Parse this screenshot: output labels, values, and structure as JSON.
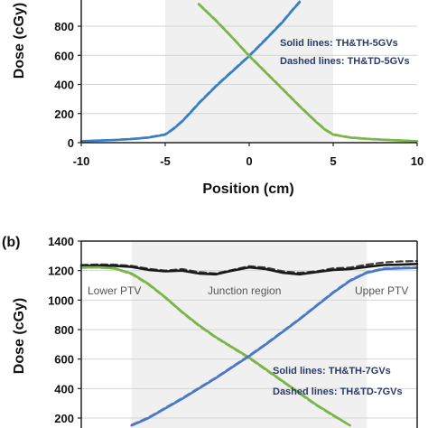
{
  "chart_data": [
    {
      "panel": "",
      "type": "line",
      "xlabel": "Position (cm)",
      "ylabel": "Dose (cGy)",
      "xlim": [
        -10,
        10
      ],
      "ylim": [
        0,
        1000
      ],
      "x_ticks": [
        "-10",
        "-5",
        "0",
        "5",
        "10"
      ],
      "y_ticks": [
        "0",
        "200",
        "400",
        "600",
        "800"
      ],
      "shaded_region": [
        -5,
        5
      ],
      "annotations": [
        "Solid lines: TH&TH-5GVs",
        "Dashed lines: TH&TD-5GVs"
      ],
      "series": [
        {
          "color": "#3a7fc4",
          "style": "solid",
          "x": [
            -10,
            -9,
            -8,
            -7,
            -6,
            -5,
            -4.5,
            -4,
            -3.5,
            -3,
            -2,
            -1,
            0,
            1,
            2,
            2.5,
            3
          ],
          "y": [
            10,
            14,
            18,
            25,
            35,
            55,
            95,
            145,
            205,
            270,
            385,
            490,
            595,
            710,
            830,
            900,
            965
          ]
        },
        {
          "color": "#3a7fc4",
          "style": "dashed",
          "x": [
            -10,
            -9,
            -8,
            -7,
            -6,
            -5,
            -4.5,
            -4,
            -3.5,
            -3,
            -2,
            -1,
            0,
            1,
            2,
            2.5,
            3
          ],
          "y": [
            12,
            16,
            20,
            27,
            38,
            58,
            100,
            150,
            210,
            275,
            390,
            495,
            600,
            715,
            835,
            905,
            970
          ]
        },
        {
          "color": "#7ab648",
          "style": "solid",
          "x": [
            -3,
            -2,
            -1,
            0,
            1,
            2,
            3,
            4,
            4.5,
            5,
            6,
            7,
            8,
            9,
            10
          ],
          "y": [
            950,
            840,
            720,
            595,
            480,
            365,
            250,
            140,
            90,
            55,
            35,
            26,
            20,
            15,
            10
          ]
        },
        {
          "color": "#7ab648",
          "style": "dashed",
          "x": [
            -3,
            -2,
            -1,
            0,
            1,
            2,
            3,
            4,
            4.5,
            5,
            6,
            7,
            8,
            9,
            10
          ],
          "y": [
            955,
            845,
            725,
            600,
            485,
            370,
            255,
            145,
            95,
            58,
            38,
            28,
            22,
            17,
            12
          ]
        }
      ]
    },
    {
      "panel": "(b)",
      "type": "line",
      "xlabel": "",
      "ylabel": "Dose (cGy)",
      "xlim": [
        -10,
        10
      ],
      "ylim": [
        150,
        1400
      ],
      "y_ticks": [
        "200",
        "400",
        "600",
        "800",
        "1000",
        "1200",
        "1400"
      ],
      "shaded_region": [
        -7,
        7
      ],
      "region_labels": [
        "Lower PTV",
        "Junction region",
        "Upper PTV"
      ],
      "annotations": [
        "Solid lines: TH&TH-7GVs",
        "Dashed lines: TH&TD-7GVs"
      ],
      "series": [
        {
          "color": "#1a1a1a",
          "style": "solid",
          "x": [
            -10,
            -9,
            -8,
            -7,
            -6,
            -5,
            -4,
            -3,
            -2,
            -1,
            0,
            1,
            2,
            3,
            4,
            5,
            6,
            7,
            8,
            9,
            10
          ],
          "y": [
            1232,
            1235,
            1232,
            1225,
            1205,
            1195,
            1200,
            1180,
            1175,
            1200,
            1222,
            1210,
            1185,
            1175,
            1190,
            1205,
            1210,
            1225,
            1238,
            1240,
            1245
          ]
        },
        {
          "color": "#1a1a1a",
          "style": "dashed",
          "x": [
            -10,
            -9,
            -8,
            -7,
            -6,
            -5,
            -4,
            -3,
            -2,
            -1,
            0,
            1,
            2,
            3,
            4,
            5,
            6,
            7,
            8,
            9,
            10
          ],
          "y": [
            1238,
            1242,
            1240,
            1232,
            1212,
            1200,
            1210,
            1190,
            1180,
            1205,
            1230,
            1220,
            1195,
            1185,
            1195,
            1215,
            1220,
            1240,
            1255,
            1262,
            1265
          ]
        },
        {
          "color": "#7ab648",
          "style": "solid",
          "x": [
            -10,
            -9,
            -8,
            -7,
            -6,
            -5,
            -4,
            -3,
            -2,
            -1,
            0,
            1,
            2,
            3,
            4,
            5,
            6
          ],
          "y": [
            1222,
            1222,
            1215,
            1180,
            1110,
            1020,
            920,
            830,
            750,
            680,
            610,
            530,
            450,
            370,
            290,
            220,
            150
          ]
        },
        {
          "color": "#7ab648",
          "style": "dashed",
          "x": [
            -10,
            -9,
            -8,
            -7,
            -6,
            -5,
            -4,
            -3,
            -2,
            -1,
            0,
            1,
            2,
            3,
            4,
            5,
            6
          ],
          "y": [
            1218,
            1220,
            1212,
            1175,
            1105,
            1015,
            915,
            825,
            745,
            675,
            605,
            525,
            445,
            365,
            285,
            215,
            150
          ]
        },
        {
          "color": "#4a78c9",
          "style": "solid",
          "x": [
            -7,
            -6,
            -5,
            -4,
            -3,
            -2,
            -1,
            0,
            1,
            2,
            3,
            4,
            5,
            6,
            7,
            8,
            9,
            10
          ],
          "y": [
            150,
            200,
            265,
            330,
            400,
            470,
            545,
            620,
            700,
            785,
            870,
            960,
            1050,
            1130,
            1185,
            1210,
            1215,
            1218
          ]
        },
        {
          "color": "#4a78c9",
          "style": "dashed",
          "x": [
            -7,
            -6,
            -5,
            -4,
            -3,
            -2,
            -1,
            0,
            1,
            2,
            3,
            4,
            5,
            6,
            7,
            8,
            9,
            10
          ],
          "y": [
            155,
            205,
            270,
            335,
            405,
            475,
            550,
            625,
            705,
            790,
            875,
            965,
            1055,
            1135,
            1190,
            1215,
            1220,
            1222
          ]
        }
      ]
    }
  ]
}
